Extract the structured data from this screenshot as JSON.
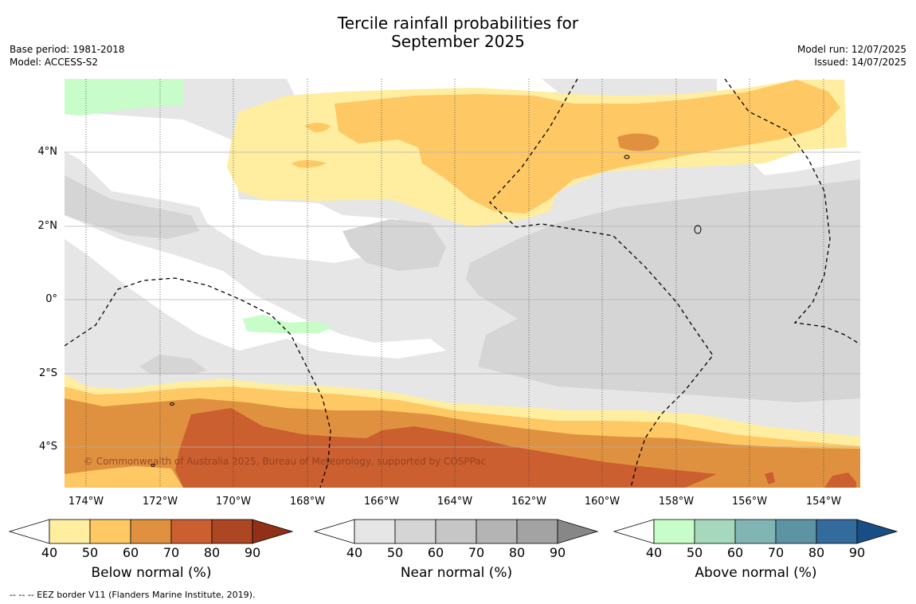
{
  "title_line1": "Tercile rainfall probabilities for",
  "title_line2": "September 2025",
  "meta_left": {
    "base_period": "Base period: 1981-2018",
    "model": "Model: ACCESS-S2"
  },
  "meta_right": {
    "model_run": "Model run: 12/07/2025",
    "issued": "Issued: 14/07/2025"
  },
  "map": {
    "lat_ticks": [
      "4°N",
      "2°N",
      "0°",
      "2°S",
      "4°S"
    ],
    "lon_ticks": [
      "174°W",
      "172°W",
      "170°W",
      "168°W",
      "166°W",
      "164°W",
      "162°W",
      "160°W",
      "158°W",
      "156°W",
      "154°W"
    ],
    "copyright": "© Commonwealth of Australia 2025, Bureau of Meteorology, supported by COSPPac"
  },
  "colorbars": [
    {
      "title": "Below normal (%)",
      "ticks": [
        "40",
        "50",
        "60",
        "70",
        "80",
        "90"
      ],
      "colors": [
        "#ffeda0",
        "#fec965",
        "#e0913f",
        "#cb5f2f",
        "#ac4623",
        "#922f18"
      ]
    },
    {
      "title": "Near normal (%)",
      "ticks": [
        "40",
        "50",
        "60",
        "70",
        "80",
        "90"
      ],
      "colors": [
        "#e6e6e6",
        "#d5d5d5",
        "#c6c6c6",
        "#b4b4b4",
        "#a3a3a3",
        "#878787"
      ]
    },
    {
      "title": "Above normal (%)",
      "ticks": [
        "40",
        "50",
        "60",
        "70",
        "80",
        "90"
      ],
      "colors": [
        "#c8fcc8",
        "#a5d8bd",
        "#80b5b3",
        "#5d94a3",
        "#336b9c",
        "#194d86"
      ]
    }
  ],
  "footer": "--  --  -- EEZ border V11 (Flanders Marine Institute, 2019)."
}
